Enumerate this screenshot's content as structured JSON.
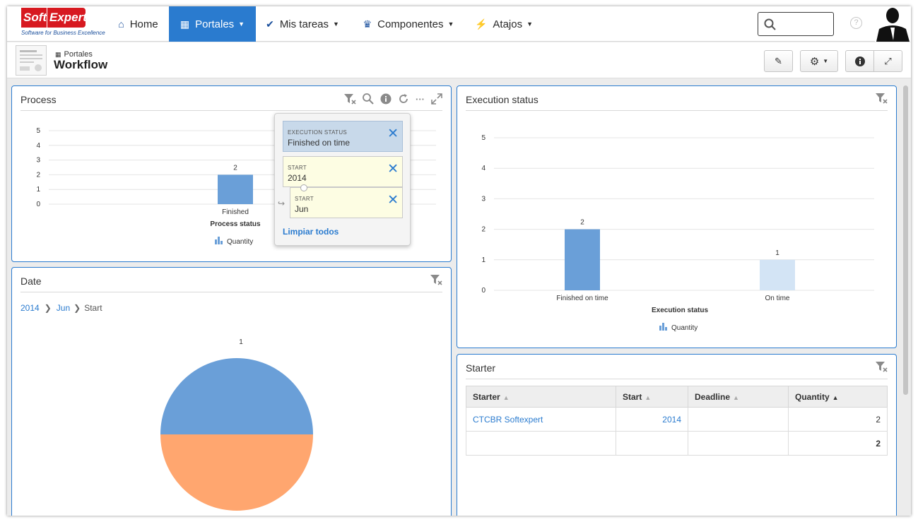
{
  "app": {
    "logo_brand_a": "Soft",
    "logo_brand_b": "Expert",
    "logo_tagline": "Software for Business Excellence"
  },
  "nav": [
    {
      "label": "Home",
      "icon": "home-icon"
    },
    {
      "label": "Portales",
      "icon": "dashboard-icon"
    },
    {
      "label": "Mis tareas",
      "icon": "check-icon"
    },
    {
      "label": "Componentes",
      "icon": "trophy-icon"
    },
    {
      "label": "Atajos",
      "icon": "bolt-icon"
    }
  ],
  "help_label": "?",
  "page": {
    "breadcrumb": "Portales",
    "title": "Workflow"
  },
  "process_panel": {
    "title": "Process",
    "chart_data": {
      "type": "bar",
      "categories": [
        "Finished"
      ],
      "values": [
        2
      ],
      "xlabel": "Process status",
      "ylim": [
        0,
        5
      ],
      "yticks": [
        "0",
        "1",
        "2",
        "3",
        "4",
        "5"
      ],
      "legend": "Quantity",
      "color": "#6a9fd8"
    }
  },
  "filter_popup": {
    "filters": [
      {
        "key": "EXECUTION STATUS",
        "value": "Finished on time"
      },
      {
        "key": "START",
        "value": "2014"
      },
      {
        "key": "START",
        "value": "Jun"
      }
    ],
    "clear_all": "Limpiar todos"
  },
  "date_panel": {
    "title": "Date",
    "breadcrumb": [
      "2014",
      "Jun",
      "Start"
    ],
    "chart_data": {
      "type": "pie",
      "data_label": "1",
      "slices": [
        {
          "value": 1,
          "color": "#6a9fd8"
        },
        {
          "value": 1,
          "color": "#ffa66f"
        }
      ]
    }
  },
  "exec_panel": {
    "title": "Execution status",
    "chart_data": {
      "type": "bar",
      "categories": [
        "Finished on time",
        "On time"
      ],
      "values": [
        2,
        1
      ],
      "colors": [
        "#6a9fd8",
        "#d3e4f5"
      ],
      "xlabel": "Execution status",
      "ylim": [
        0,
        5
      ],
      "yticks": [
        "0",
        "1",
        "2",
        "3",
        "4",
        "5"
      ],
      "legend": "Quantity"
    }
  },
  "starter_panel": {
    "title": "Starter",
    "columns": [
      "Starter",
      "Start",
      "Deadline",
      "Quantity"
    ],
    "rows": [
      [
        "CTCBR Softexpert",
        "2014",
        "",
        "2"
      ],
      [
        "",
        "",
        "",
        "2"
      ]
    ]
  }
}
